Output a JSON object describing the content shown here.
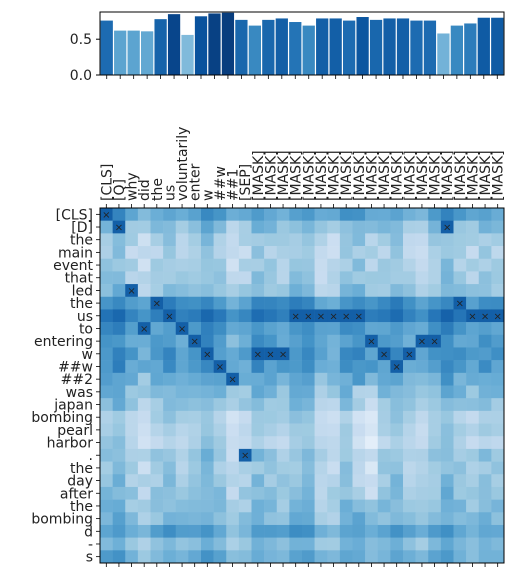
{
  "chart_data": [
    {
      "type": "bar",
      "ylim": [
        0,
        0.88
      ],
      "yticks": [
        "0.0",
        "0.5"
      ],
      "values": [
        0.76,
        0.62,
        0.62,
        0.61,
        0.78,
        0.85,
        0.56,
        0.82,
        0.86,
        0.87,
        0.77,
        0.69,
        0.77,
        0.79,
        0.74,
        0.69,
        0.79,
        0.79,
        0.76,
        0.81,
        0.77,
        0.79,
        0.79,
        0.76,
        0.76,
        0.58,
        0.69,
        0.72,
        0.8,
        0.8
      ]
    },
    {
      "type": "heatmap",
      "colormap": "Blues",
      "x_labels": [
        "[CLS]",
        "[Q]",
        "why",
        "did",
        "the",
        "us",
        "voluntarily",
        "enter",
        "w",
        "##w",
        "##1",
        "[SEP]",
        "[MASK]",
        "[MASK]",
        "[MASK]",
        "[MASK]",
        "[MASK]",
        "[MASK]",
        "[MASK]",
        "[MASK]",
        "[MASK]",
        "[MASK]",
        "[MASK]",
        "[MASK]",
        "[MASK]",
        "[MASK]",
        "[MASK]",
        "[MASK]",
        "[MASK]",
        "[MASK]",
        "[MASK]",
        "[MASK]"
      ],
      "y_labels": [
        "[CLS]",
        "[D]",
        "the",
        "main",
        "event",
        "that",
        "led",
        "the",
        "us",
        "to",
        "entering",
        "w",
        "##w",
        "##2",
        "was",
        "japan",
        "bombing",
        "pearl",
        "harbor",
        ".",
        "the",
        "day",
        "after",
        "the",
        "bombing",
        "d",
        "-",
        "s"
      ],
      "row_base": [
        0.55,
        0.42,
        0.35,
        0.32,
        0.34,
        0.36,
        0.4,
        0.62,
        0.7,
        0.58,
        0.56,
        0.6,
        0.58,
        0.5,
        0.45,
        0.4,
        0.33,
        0.3,
        0.31,
        0.38,
        0.36,
        0.38,
        0.4,
        0.42,
        0.44,
        0.55,
        0.4,
        0.5
      ],
      "marks": [
        [
          0,
          0
        ],
        [
          1,
          1
        ],
        [
          1,
          27
        ],
        [
          6,
          2
        ],
        [
          7,
          4
        ],
        [
          7,
          28
        ],
        [
          8,
          5
        ],
        [
          8,
          15
        ],
        [
          8,
          16
        ],
        [
          8,
          17
        ],
        [
          8,
          18
        ],
        [
          8,
          19
        ],
        [
          8,
          20
        ],
        [
          8,
          29
        ],
        [
          8,
          30
        ],
        [
          8,
          31
        ],
        [
          9,
          3
        ],
        [
          9,
          6
        ],
        [
          10,
          7
        ],
        [
          10,
          21
        ],
        [
          10,
          25
        ],
        [
          10,
          26
        ],
        [
          11,
          8
        ],
        [
          11,
          12
        ],
        [
          11,
          13
        ],
        [
          11,
          14
        ],
        [
          11,
          22
        ],
        [
          11,
          24
        ],
        [
          12,
          9
        ],
        [
          12,
          23
        ],
        [
          13,
          10
        ],
        [
          19,
          11
        ]
      ]
    }
  ]
}
